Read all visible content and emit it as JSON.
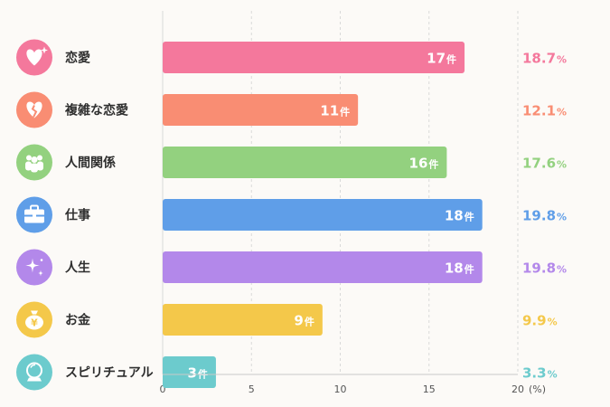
{
  "chart_data": {
    "type": "bar",
    "orientation": "horizontal",
    "categories": [
      "恋愛",
      "複雑な恋愛",
      "人間関係",
      "仕事",
      "人生",
      "お金",
      "スピリチュアル"
    ],
    "values": [
      17,
      11,
      16,
      18,
      18,
      9,
      3
    ],
    "value_unit": "件",
    "percentages": [
      "18.7",
      "12.1",
      "17.6",
      "19.8",
      "19.8",
      "9.9",
      "3.3"
    ],
    "percent_unit": "%",
    "colors": [
      "#f4789c",
      "#f98d73",
      "#93d17f",
      "#5f9ee8",
      "#b388ea",
      "#f4c84a",
      "#6ccbcd"
    ],
    "icons": [
      "heart-icon",
      "broken-heart-icon",
      "people-icon",
      "briefcase-icon",
      "sparkle-icon",
      "money-bag-icon",
      "crystal-ball-icon"
    ],
    "xlim": [
      0,
      20
    ],
    "xticks": [
      0,
      5,
      10,
      15,
      20
    ],
    "xlabel": "(%)",
    "grid": true
  }
}
